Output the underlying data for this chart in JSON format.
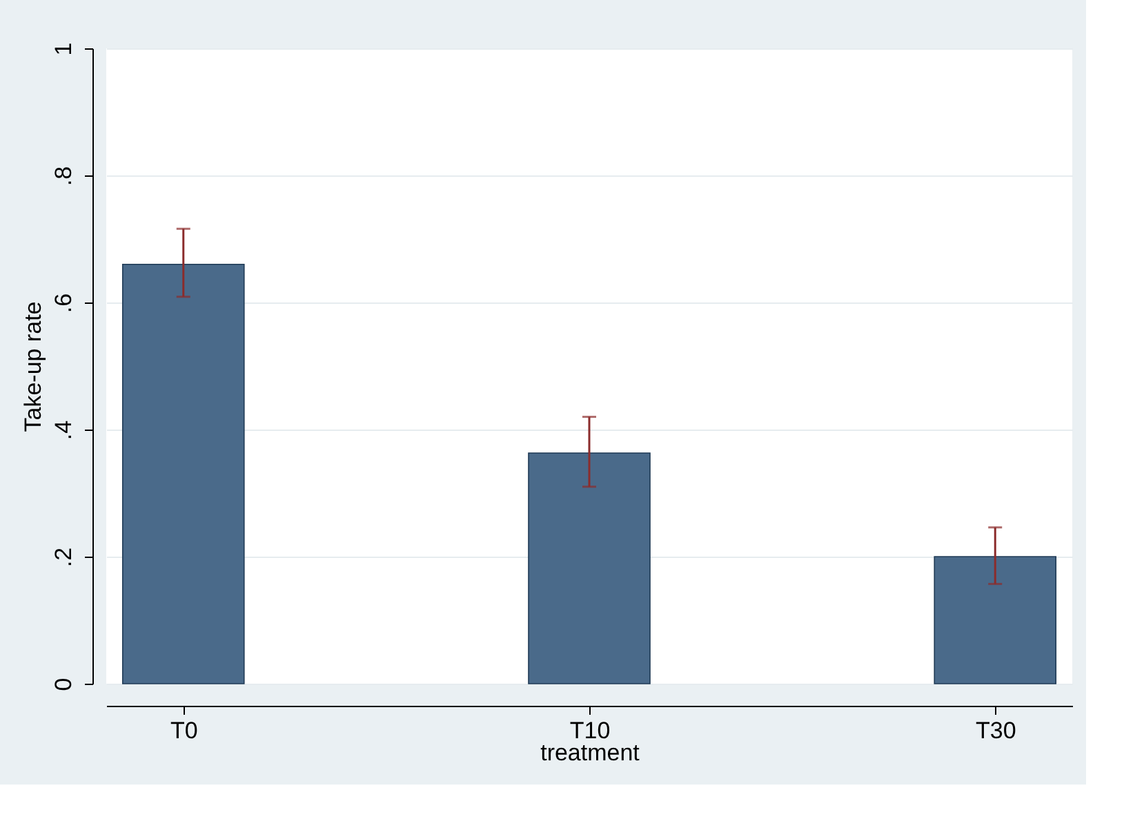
{
  "chart_data": {
    "type": "bar",
    "xlabel": "treatment",
    "ylabel": "Take-up rate",
    "categories": [
      "T0",
      "T10",
      "T30"
    ],
    "values": [
      0.66,
      0.363,
      0.2
    ],
    "errors": [
      [
        0.609,
        0.716
      ],
      [
        0.31,
        0.42
      ],
      [
        0.157,
        0.246
      ]
    ],
    "color": "#4a6a8a",
    "ylim": [
      0,
      1
    ],
    "yticks": [
      0,
      {
        "value": 0.2,
        "label": ".2"
      },
      {
        "value": 0.4,
        "label": ".4"
      },
      {
        "value": 0.6,
        "label": ".6"
      },
      {
        "value": 0.8,
        "label": ".8"
      },
      1
    ],
    "grid": "y",
    "legend": false
  }
}
